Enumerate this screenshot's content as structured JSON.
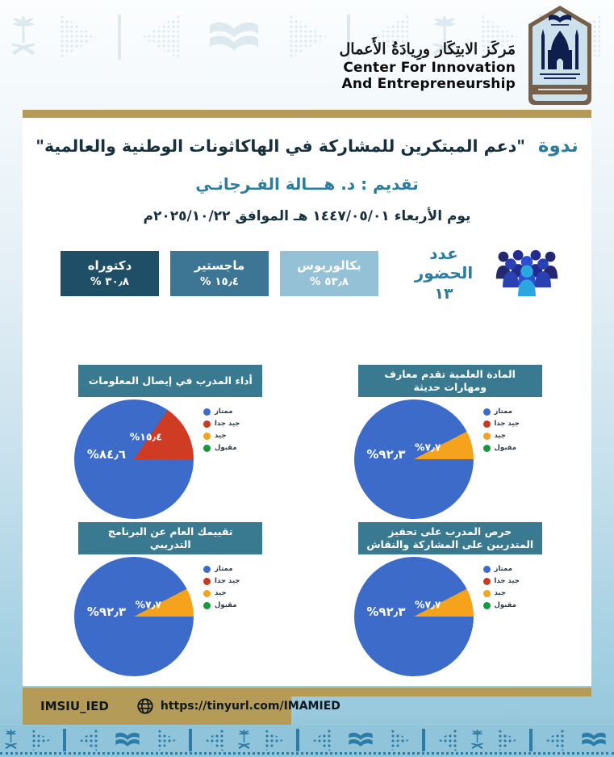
{
  "header": {
    "logo_arabic": "مَركَز الابتِكَار ورِيادَةُ الأَعمال",
    "logo_en_line1": "Center For Innovation",
    "logo_en_line2": "And Entrepreneurship"
  },
  "event": {
    "kind_label": "ندوة",
    "title": "\"دعم المبتكرين للمشاركة في الهاكاثونات الوطنية والعالمية\"",
    "presenter": "تقديم : د. هـــالة الفـرجانـي",
    "date_line": "يوم الأربعاء  ١٤٤٧/٠٥/٠١ هـ   الموافق  ٢٠٢٥/١٠/٢٢م"
  },
  "attendance": {
    "label": "عدد الحضور",
    "count": "١٣"
  },
  "degrees": [
    {
      "label": "بكالوريوس",
      "value": "٥٣٫٨ %",
      "color": "#94c1d5"
    },
    {
      "label": "ماجستير",
      "value": "١٥٫٤ %",
      "color": "#3d7694"
    },
    {
      "label": "دكتوراه",
      "value": "٣٠٫٨ %",
      "color": "#1f4e67"
    }
  ],
  "legend": [
    {
      "label": "ممتاز",
      "color": "#3c6bca"
    },
    {
      "label": "جيد جدا",
      "color": "#c43a22"
    },
    {
      "label": "جيد",
      "color": "#f5a21c"
    },
    {
      "label": "مقبول",
      "color": "#14993c"
    }
  ],
  "chart_data": [
    {
      "type": "pie",
      "title": "أداء المدرب في إيصال المعلومات",
      "legend_position": "right",
      "slices": [
        {
          "label": "ممتاز",
          "value": 84.6,
          "display": "٨٤٫٦%",
          "color": "#3c6bca"
        },
        {
          "label": "جيد جدا",
          "value": 15.4,
          "display": "١٥٫٤%",
          "color": "#d03b24"
        }
      ]
    },
    {
      "type": "pie",
      "title": "المادة العلمية تقدم معارف ومهارات حديثة",
      "legend_position": "right",
      "slices": [
        {
          "label": "ممتاز",
          "value": 92.3,
          "display": "٩٢٫٣%",
          "color": "#3c6bca"
        },
        {
          "label": "جيد",
          "value": 7.7,
          "display": "٧٫٧%",
          "color": "#f5a21c"
        }
      ]
    },
    {
      "type": "pie",
      "title": "تقييمك العام عن البرنامج التدريبي",
      "legend_position": "right",
      "slices": [
        {
          "label": "ممتاز",
          "value": 92.3,
          "display": "٩٢٫٣%",
          "color": "#3c6bca"
        },
        {
          "label": "جيد",
          "value": 7.7,
          "display": "٧٫٧%",
          "color": "#f5a21c"
        }
      ]
    },
    {
      "type": "pie",
      "title": "حرص المدرب على تحفيز المتدربين على المشاركة والنقاش",
      "legend_position": "right",
      "slices": [
        {
          "label": "ممتاز",
          "value": 92.3,
          "display": "٩٢٫٣%",
          "color": "#3c6bca"
        },
        {
          "label": "جيد",
          "value": 7.7,
          "display": "٧٫٧%",
          "color": "#f5a21c"
        }
      ]
    }
  ],
  "footer": {
    "x_handle": "IMSIU_IED",
    "url": "https://tinyurl.com/IMAMIED"
  },
  "decor": {
    "sequence": [
      "saudi-emblem",
      "chevron-right",
      "divider",
      "chevron-left",
      "open-book",
      "chevron-right",
      "divider",
      "chevron-left"
    ],
    "top_color": "#dde8ef",
    "bottom_icon_color": "#2e7ca6",
    "bottom_band_bg": "#90c4da"
  },
  "colors": {
    "accent_teal": "#2c7c9e",
    "dark_navy": "#16303e",
    "gold": "#b49b58",
    "chart_header_teal": "#3a7a90"
  }
}
